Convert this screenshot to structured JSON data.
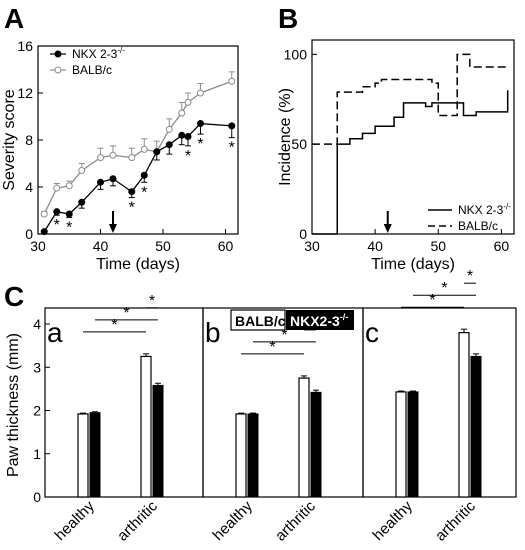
{
  "colors": {
    "axis": "#000000",
    "nkx": "#000000",
    "balb": "#8c8c8c",
    "open_bar": "#ffffff",
    "filled_bar": "#000000",
    "legend_box": "#000000"
  },
  "chart_data": [
    {
      "panel_letter": "A",
      "type": "line",
      "xlabel": "Time (days)",
      "ylabel": "Severity score",
      "xlim": [
        30,
        62
      ],
      "ylim": [
        0,
        16
      ],
      "xticks": [
        "30",
        "40",
        "50",
        "60"
      ],
      "yticks": [
        "0",
        "4",
        "8",
        "12",
        "16"
      ],
      "arrow_at_x": 42,
      "series": [
        {
          "name": "NKX 2-3",
          "name_superscript": "-/-",
          "marker": "filled-circle",
          "x": [
            31,
            33,
            35,
            37,
            40,
            42,
            45,
            47,
            49,
            51,
            53,
            54,
            56,
            61
          ],
          "y": [
            0.2,
            1.9,
            1.7,
            2.7,
            4.4,
            4.7,
            3.6,
            5,
            7,
            7.6,
            8.4,
            8.3,
            9.4,
            9.2
          ],
          "err": [
            0.1,
            0.3,
            0.3,
            0.5,
            0.6,
            0.6,
            0.5,
            0.6,
            0.7,
            0.8,
            0.8,
            0.8,
            0.9,
            1
          ]
        },
        {
          "name": "BALB/c",
          "marker": "open-circle",
          "x": [
            31,
            33,
            35,
            37,
            40,
            42,
            45,
            47,
            49,
            51,
            53,
            54,
            56,
            61
          ],
          "y": [
            1.7,
            3.9,
            4.1,
            5.4,
            6.5,
            6.7,
            6.5,
            7.2,
            7,
            8.9,
            10.3,
            11.2,
            12,
            13
          ],
          "err": [
            0.2,
            0.4,
            0.4,
            0.6,
            0.8,
            0.8,
            0.8,
            0.9,
            0.9,
            0.9,
            0.9,
            0.8,
            0.8,
            0.8
          ]
        }
      ],
      "star_x": [
        33,
        35,
        45,
        47,
        54,
        56,
        61
      ]
    },
    {
      "panel_letter": "B",
      "type": "line",
      "xlabel": "Time (days)",
      "ylabel": "Incidence (%)",
      "xlim": [
        30,
        62
      ],
      "ylim": [
        0,
        108
      ],
      "xticks": [
        "30",
        "40",
        "50",
        "60"
      ],
      "yticks": [
        "0",
        "50",
        "100"
      ],
      "arrow_at_x": 42,
      "series": [
        {
          "name": "NKX 2-3",
          "name_superscript": "-/-",
          "line_style": "solid-step",
          "x": [
            30,
            34,
            34,
            36,
            38,
            40,
            43,
            44.5,
            48,
            49,
            53,
            54,
            56,
            61
          ],
          "y": [
            0,
            0,
            50,
            53,
            56,
            60,
            65,
            73,
            71,
            73,
            73,
            66,
            68,
            80
          ]
        },
        {
          "name": "BALB/c",
          "line_style": "dashed-step",
          "x": [
            30,
            32,
            33,
            34,
            38,
            40,
            41,
            43,
            49,
            50,
            52,
            53,
            55,
            61
          ],
          "y": [
            50,
            50,
            50,
            79,
            82,
            84,
            86,
            86,
            84,
            66,
            66,
            100,
            93,
            93
          ]
        }
      ]
    },
    {
      "panel_letter": "C",
      "type": "bar",
      "ylabel": "Paw thickness (mm)",
      "ylim": [
        0,
        4
      ],
      "yticks": [
        "0",
        "1",
        "2",
        "3",
        "4"
      ],
      "categories": [
        "healthy",
        "arthritic"
      ],
      "legend": {
        "open_label": "BALB/c",
        "filled_label": "NKX2-3",
        "filled_superscript": "-/-"
      },
      "star_label": "*",
      "subpanels": [
        {
          "letter": "a",
          "balb": [
            1.92,
            3.25
          ],
          "nkx": [
            1.95,
            2.58
          ],
          "balb_err": [
            0.02,
            0.06
          ],
          "nkx_err": [
            0.02,
            0.05
          ]
        },
        {
          "letter": "b",
          "balb": [
            1.92,
            2.75
          ],
          "nkx": [
            1.92,
            2.42
          ],
          "balb_err": [
            0.02,
            0.05
          ],
          "nkx_err": [
            0.02,
            0.05
          ]
        },
        {
          "letter": "c",
          "balb": [
            2.43,
            3.8
          ],
          "nkx": [
            2.43,
            3.25
          ],
          "balb_err": [
            0.02,
            0.08
          ],
          "nkx_err": [
            0.02,
            0.06
          ]
        }
      ]
    }
  ]
}
